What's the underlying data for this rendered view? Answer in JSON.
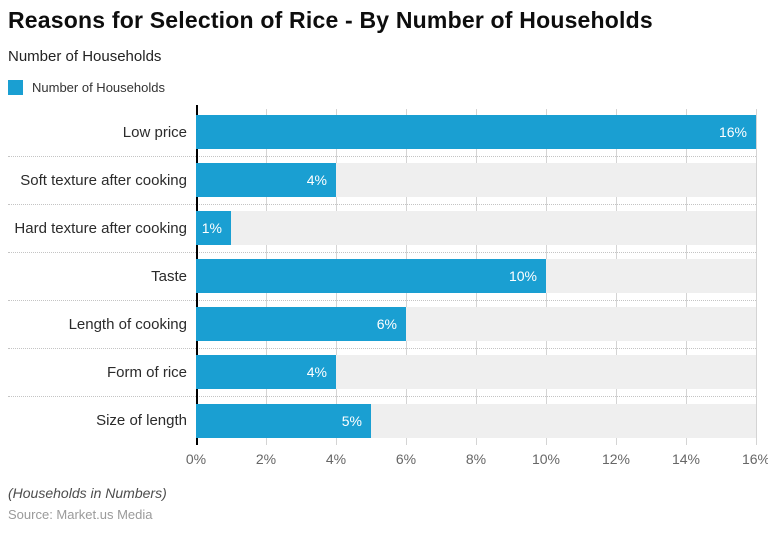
{
  "header": {
    "title": "Reasons for Selection of Rice - By Number of Households",
    "subtitle": "Number of Households",
    "legend": {
      "label": "Number of Households",
      "swatch_color": "#1a9fd2"
    }
  },
  "chart_data": {
    "type": "bar",
    "orientation": "horizontal",
    "title": "Reasons for Selection of Rice - By Number of Households",
    "series_name": "Number of Households",
    "categories": [
      "Low price",
      "Soft texture after cooking",
      "Hard texture after cooking",
      "Taste",
      "Length of cooking",
      "Form of rice",
      "Size of length"
    ],
    "values": [
      16,
      4,
      1,
      10,
      6,
      4,
      5
    ],
    "value_labels": [
      "16%",
      "4%",
      "1%",
      "10%",
      "6%",
      "4%",
      "5%"
    ],
    "xlim": [
      0,
      16
    ],
    "x_ticks": [
      0,
      2,
      4,
      6,
      8,
      10,
      12,
      14,
      16
    ],
    "x_tick_labels": [
      "0%",
      "2%",
      "4%",
      "6%",
      "8%",
      "10%",
      "12%",
      "14%",
      "16%"
    ],
    "bar_color": "#1a9fd2",
    "track_color": "#efefef",
    "grid": true,
    "legend_position": "top-left"
  },
  "footer": {
    "note": "(Households in Numbers)",
    "source": "Source: Market.us Media"
  }
}
